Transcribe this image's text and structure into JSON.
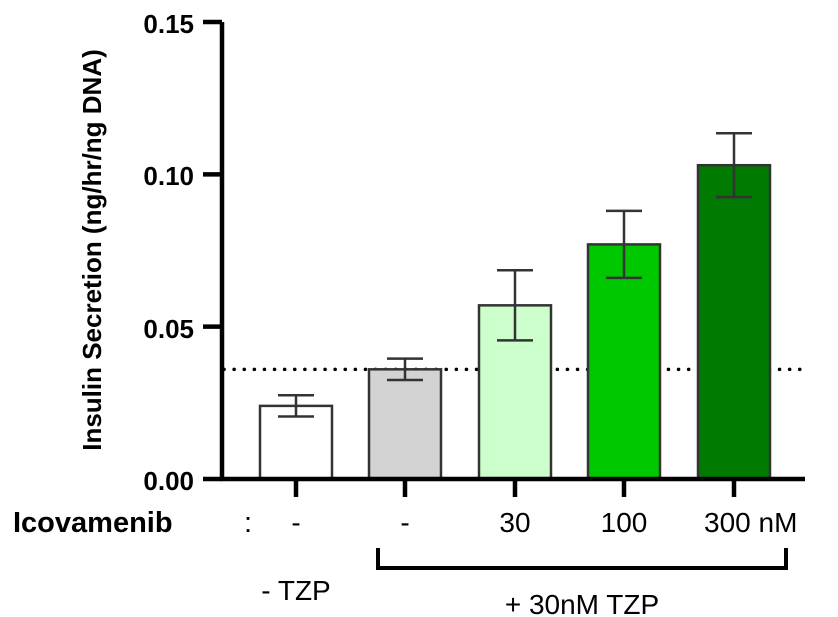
{
  "chart_data": {
    "type": "bar",
    "ylabel": "Insulin Secretion (ng/hr/ng DNA)",
    "ylim": [
      0,
      0.15
    ],
    "yticks": [
      "0.00",
      "0.05",
      "0.10",
      "0.15"
    ],
    "ytick_values": [
      0,
      0.05,
      0.1,
      0.15
    ],
    "row_label": "Icovamenib",
    "row_label_suffix": ":",
    "categories": [
      "-",
      "-",
      "30",
      "100",
      "300 nM"
    ],
    "values": [
      0.024,
      0.036,
      0.057,
      0.077,
      0.103
    ],
    "errors": [
      0.0035,
      0.0035,
      0.0115,
      0.011,
      0.0105
    ],
    "colors": [
      "#ffffff",
      "#d3d3d3",
      "#ccffcc",
      "#00c800",
      "#007a00"
    ],
    "reference_line": 0.036,
    "groups": [
      {
        "label": "- TZP",
        "categories": [
          0
        ]
      },
      {
        "label": "+ 30nM TZP",
        "categories": [
          1,
          2,
          3,
          4
        ]
      }
    ]
  }
}
